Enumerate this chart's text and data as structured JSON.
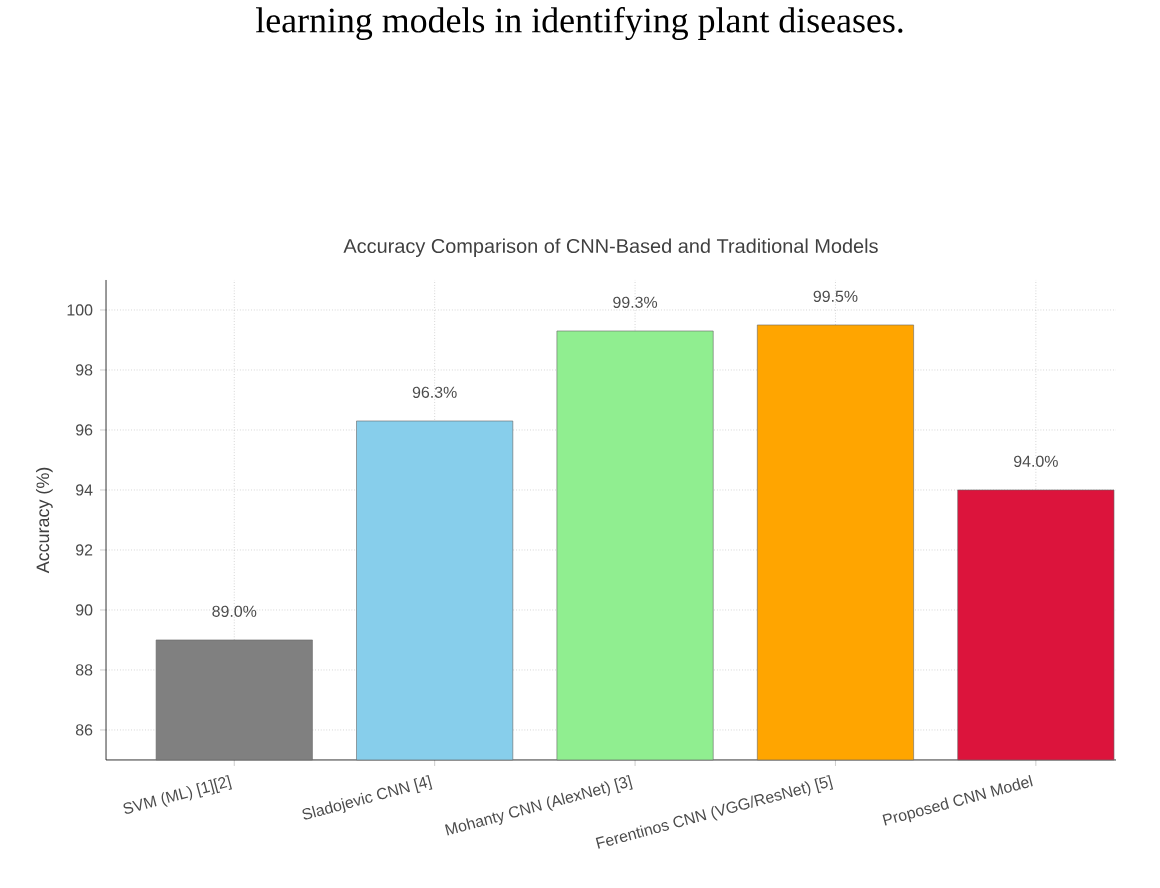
{
  "chart_data": {
    "type": "bar",
    "title": "Accuracy Comparison of CNN-Based and Traditional Models",
    "ylabel": "Accuracy (%)",
    "annotations": [
      "learning models in identifying plant diseases."
    ],
    "categories": [
      "SVM (ML) [1][2]",
      "Sladojevic CNN [4]",
      "Mohanty CNN (AlexNet) [3]",
      "Ferentinos CNN (VGG/ResNet) [5]",
      "Proposed CNN Model"
    ],
    "values": [
      89.0,
      96.3,
      99.3,
      99.5,
      94.0
    ],
    "colors": [
      "#808080",
      "#87ceeb",
      "#90ee90",
      "#ffa500",
      "#dc143c"
    ],
    "value_labels": [
      "89.0%",
      "96.3%",
      "99.3%",
      "99.5%",
      "94.0%"
    ],
    "ylim": [
      85,
      101
    ],
    "yticks": [
      86,
      88,
      90,
      92,
      94,
      96,
      98,
      100
    ],
    "grid": true
  }
}
